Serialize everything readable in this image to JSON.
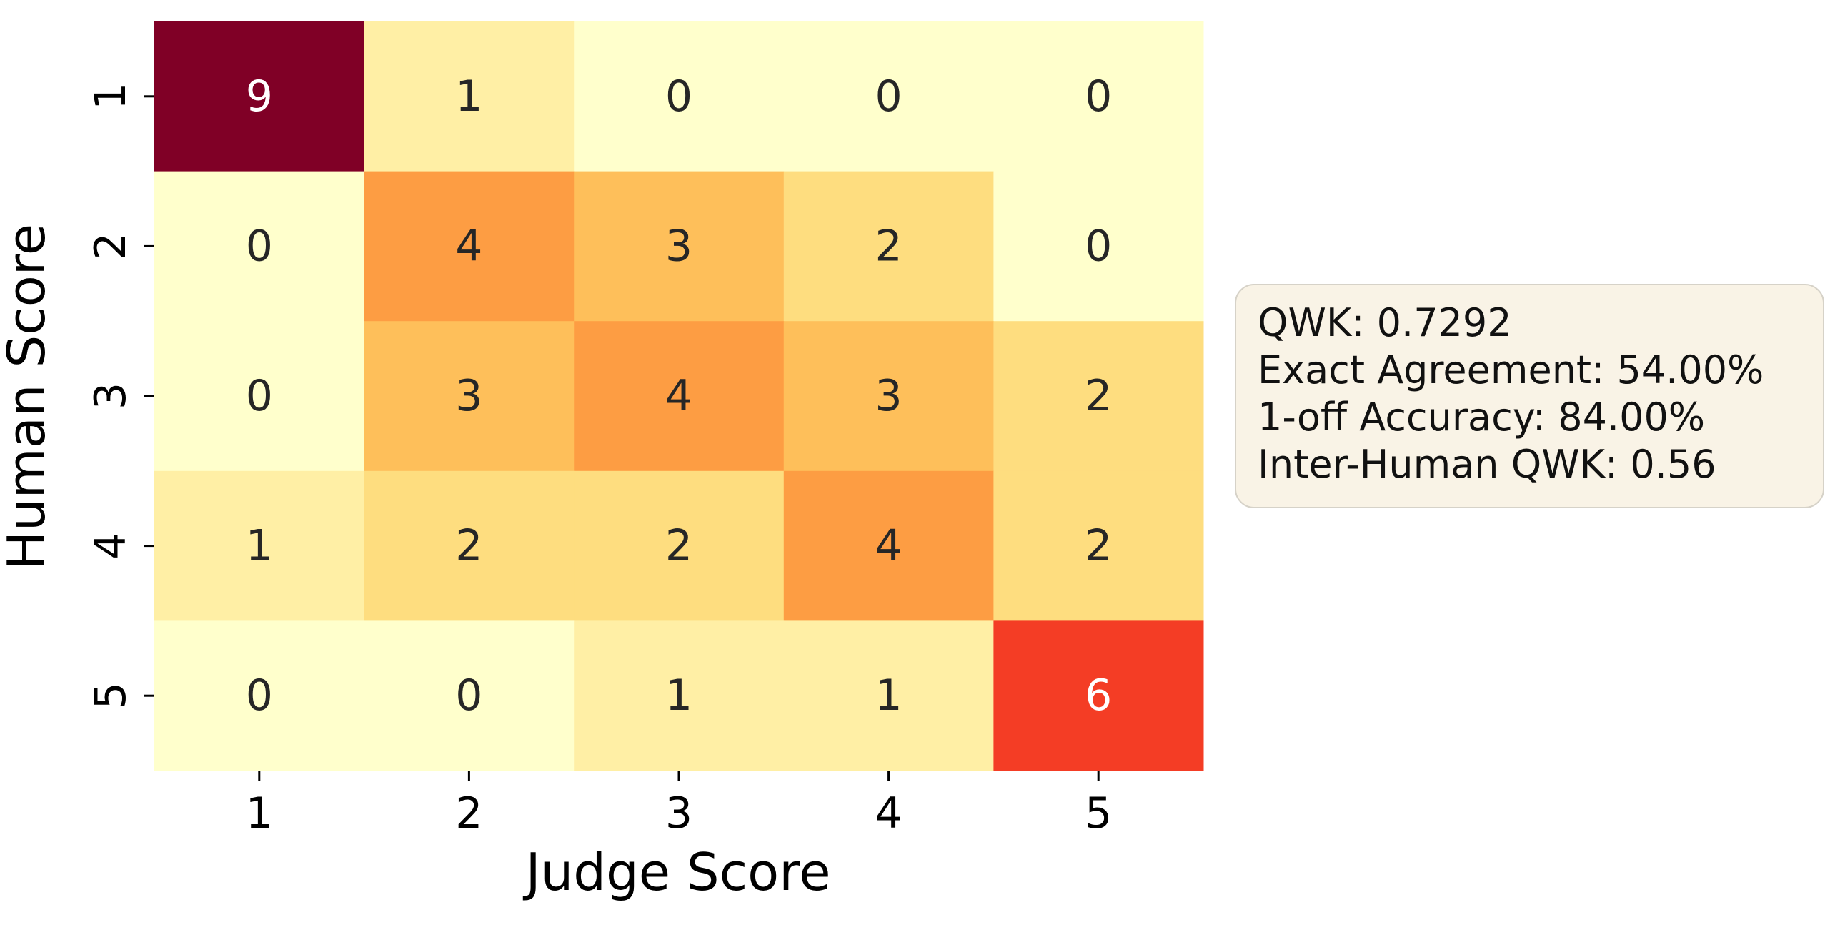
{
  "chart_data": {
    "type": "heatmap",
    "title": "",
    "xlabel": "Judge Score",
    "ylabel": "Human Score",
    "x_categories": [
      "1",
      "2",
      "3",
      "4",
      "5"
    ],
    "y_categories": [
      "1",
      "2",
      "3",
      "4",
      "5"
    ],
    "values": [
      [
        9,
        1,
        0,
        0,
        0
      ],
      [
        0,
        4,
        3,
        2,
        0
      ],
      [
        0,
        3,
        4,
        3,
        2
      ],
      [
        1,
        2,
        2,
        4,
        2
      ],
      [
        0,
        0,
        1,
        1,
        6
      ]
    ],
    "value_range": [
      0,
      9
    ],
    "colormap": "YlOrRd",
    "colorbar": false,
    "grid": false,
    "annotations": [
      "QWK: 0.7292",
      "Exact Agreement: 54.00%",
      "1-off Accuracy: 84.00%",
      "Inter-Human QWK: 0.56"
    ],
    "annotation_placement": "right"
  }
}
